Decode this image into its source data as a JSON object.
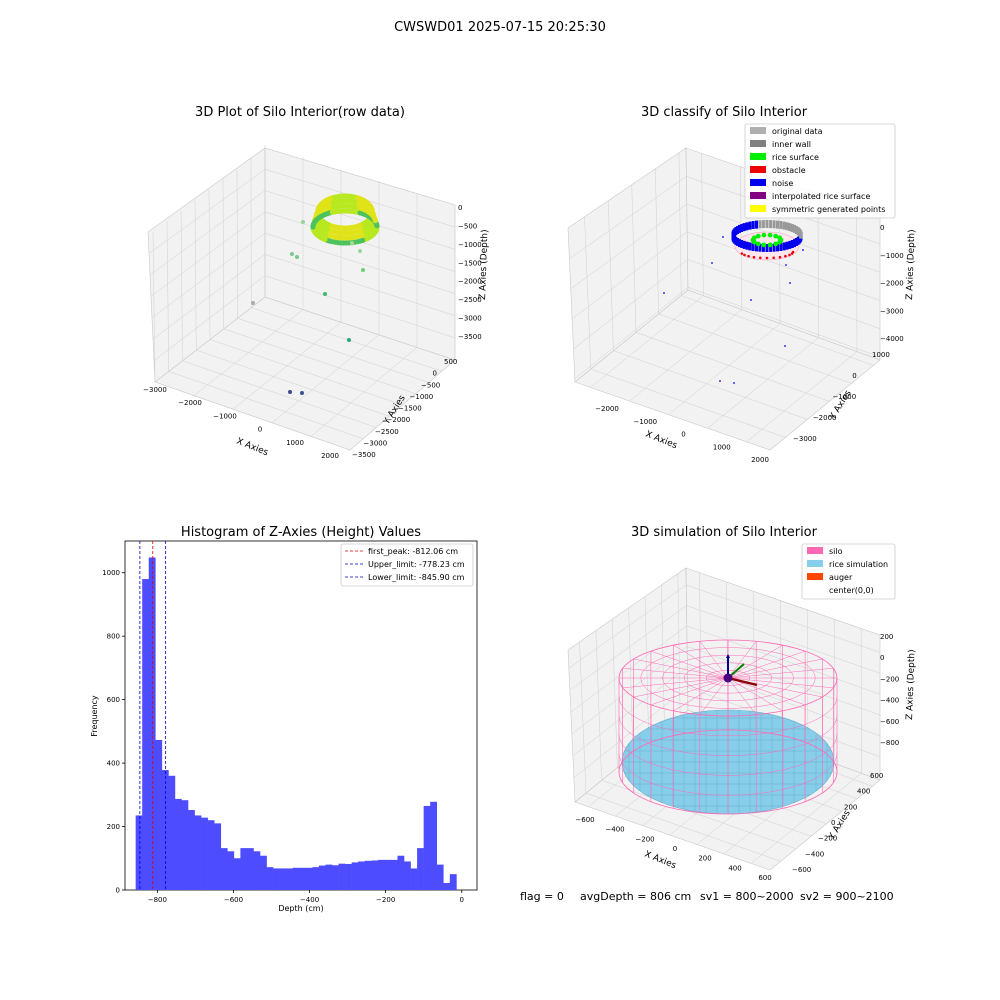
{
  "suptitle": "CWSWD01 2025-07-15 20:25:30",
  "footer": {
    "flag": "flag = 0",
    "avg_depth": "avgDepth = 806 cm",
    "sv1": "sv1 = 800~2000",
    "sv2": "sv2 = 900~2100"
  },
  "colors": {
    "hist_bar": "#4d4dff",
    "first_peak": "#e00000",
    "limits": "#0000c8",
    "silo": "#ff69b4",
    "rice_sim": "#87ceeb",
    "auger": "#ff4500",
    "grid": "#d0d0d0",
    "pane": "#f2f2f2"
  },
  "chart_data": [
    {
      "type": "scatter",
      "subtype": "3d",
      "title": "3D Plot of Silo Interior(row data)",
      "xlabel": "X Axies",
      "ylabel": "Y Axies",
      "zlabel": "Z Axies (Depth)",
      "xticks": [
        "−3000",
        "−2000",
        "−1000",
        "0",
        "1000",
        "2000"
      ],
      "yticks": [
        "500",
        "0",
        "−500",
        "−1000",
        "−1500",
        "−2000",
        "−2500",
        "−3000",
        "−3500"
      ],
      "zticks": [
        "0",
        "−500",
        "−1000",
        "−1500",
        "−2000",
        "−2500",
        "−3000",
        "−3500"
      ],
      "xlim": [
        -3000,
        2000
      ],
      "ylim": [
        -3500,
        500
      ],
      "zlim": [
        -3500,
        0
      ],
      "colormap": "viridis",
      "points": [
        {
          "x": -1600,
          "y": -500,
          "z": -400
        },
        {
          "x": -1000,
          "y": -100,
          "z": -1300
        },
        {
          "x": -900,
          "y": -150,
          "z": -1350
        },
        {
          "x": 100,
          "y": -300,
          "z": -1100
        },
        {
          "x": 300,
          "y": -300,
          "z": -1600
        },
        {
          "x": -2200,
          "y": -1500,
          "z": -1600
        },
        {
          "x": -500,
          "y": -1800,
          "z": -1900
        },
        {
          "x": 700,
          "y": -2400,
          "z": -1700
        },
        {
          "x": -100,
          "y": -3000,
          "z": -3500
        },
        {
          "x": 200,
          "y": -3100,
          "z": -3500
        }
      ],
      "cluster": {
        "x": 0,
        "y": 0,
        "z": -350,
        "radius": 500
      }
    },
    {
      "type": "scatter",
      "subtype": "3d",
      "title": "3D classify of Silo Interior",
      "xlabel": "X Axies",
      "ylabel": "Y Axies",
      "zlabel": "Z Axies (Depth)",
      "xticks": [
        "−2000",
        "−1000",
        "0",
        "1000",
        "2000"
      ],
      "yticks": [
        "1000",
        "0",
        "−1000",
        "−2000",
        "−3000"
      ],
      "zticks": [
        "0",
        "−1000",
        "−2000",
        "−3000",
        "−4000"
      ],
      "xlim": [
        -2500,
        2000
      ],
      "ylim": [
        -3500,
        1000
      ],
      "zlim": [
        -4000,
        0
      ],
      "legend": [
        {
          "label": "original data",
          "color": "#b0b0b0"
        },
        {
          "label": "inner wall",
          "color": "#808080"
        },
        {
          "label": "rice surface",
          "color": "#00ee00"
        },
        {
          "label": "obstacle",
          "color": "#ee0000"
        },
        {
          "label": "noise",
          "color": "#0000ee"
        },
        {
          "label": "interpolated rice surface",
          "color": "#800080"
        },
        {
          "label": "symmetric generated points",
          "color": "#ffff00"
        }
      ],
      "noise_points": [
        {
          "x": -1500,
          "y": -200,
          "z": -1200
        },
        {
          "x": -200,
          "y": -500,
          "z": -1000
        },
        {
          "x": 400,
          "y": -800,
          "z": -1300
        },
        {
          "x": -100,
          "y": -1600,
          "z": -2000
        },
        {
          "x": 800,
          "y": -1800,
          "z": -2200
        },
        {
          "x": -1000,
          "y": -1500,
          "z": -1900
        },
        {
          "x": 100,
          "y": -3000,
          "z": -3800
        },
        {
          "x": 300,
          "y": -2900,
          "z": -3700
        }
      ]
    },
    {
      "type": "bar",
      "subtype": "histogram",
      "title": "Histogram of Z-Axies (Height) Values",
      "xlabel": "Depth (cm)",
      "ylabel": "Frequency",
      "xlim": [
        -885,
        40
      ],
      "ylim": [
        0,
        1100
      ],
      "xticks": [
        -800,
        -600,
        -400,
        -200,
        0
      ],
      "xtick_labels": [
        "−800",
        "−600",
        "−400",
        "−200",
        "0"
      ],
      "yticks": [
        0,
        200,
        400,
        600,
        800,
        1000
      ],
      "bin_start": -857,
      "bin_width": 17.2,
      "values": [
        235,
        980,
        1048,
        473,
        378,
        360,
        287,
        283,
        252,
        235,
        228,
        220,
        210,
        132,
        122,
        100,
        132,
        132,
        122,
        108,
        72,
        68,
        68,
        68,
        70,
        70,
        70,
        72,
        77,
        80,
        78,
        83,
        82,
        87,
        90,
        92,
        93,
        95,
        95,
        95,
        108,
        90,
        68,
        132,
        265,
        278,
        80,
        22,
        50
      ],
      "lines": [
        {
          "label": "first_peak: -812.06 cm",
          "x": -812.06,
          "color": "#e00000"
        },
        {
          "label": "Upper_limit: -778.23 cm",
          "x": -778.23,
          "color": "#0000c8"
        },
        {
          "label": "Lower_limit: -845.90 cm",
          "x": -845.9,
          "color": "#0000c8"
        }
      ]
    },
    {
      "type": "scatter",
      "subtype": "3d-simulation",
      "title": "3D simulation of Silo Interior",
      "xlabel": "X Axies",
      "ylabel": "Y Axies",
      "zlabel": "Z Axies (Depth)",
      "xticks": [
        "−600",
        "−400",
        "−200",
        "0",
        "200",
        "400",
        "600"
      ],
      "yticks": [
        "600",
        "400",
        "200",
        "0",
        "−200",
        "−400",
        "−600"
      ],
      "zticks": [
        "200",
        "0",
        "−200",
        "−400",
        "−600",
        "−800"
      ],
      "xlim": [
        -650,
        650
      ],
      "ylim": [
        -650,
        650
      ],
      "zlim": [
        -950,
        300
      ],
      "legend": [
        {
          "label": "silo",
          "color": "#ff69b4"
        },
        {
          "label": "rice simulation",
          "color": "#87ceeb"
        },
        {
          "label": "auger",
          "color": "#ff4500"
        },
        {
          "label": "center(0,0)",
          "color": "#ffffff"
        }
      ],
      "silo_radius": 650,
      "silo_top_z": 0,
      "silo_bottom_z": -950,
      "rice_depth_z": -806
    }
  ]
}
